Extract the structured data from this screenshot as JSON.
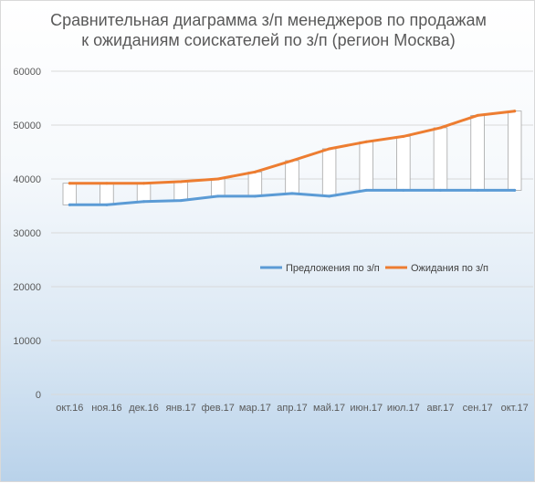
{
  "chart_data": {
    "type": "line",
    "title_lines": [
      "Сравнительная диаграмма з/п менеджеров по продажам",
      "к ожиданиям соискателей по з/п (регион Москва)"
    ],
    "categories": [
      "окт.16",
      "ноя.16",
      "дек.16",
      "янв.17",
      "фев.17",
      "мар.17",
      "апр.17",
      "май.17",
      "июн.17",
      "июл.17",
      "авг.17",
      "сен.17",
      "окт.17"
    ],
    "series": [
      {
        "name": "Предложения по з/п",
        "color": "#5b9bd5",
        "values": [
          35200,
          35200,
          35800,
          36000,
          36800,
          36800,
          37300,
          36800,
          37900,
          37900,
          37900,
          37900,
          37900
        ]
      },
      {
        "name": "Ожидания по з/п",
        "color": "#ed7d31",
        "values": [
          39200,
          39200,
          39200,
          39500,
          40000,
          41300,
          43400,
          45600,
          46900,
          47900,
          49500,
          51800,
          52600
        ]
      }
    ],
    "up_down_bars": true,
    "yticks": [
      "0",
      "10000",
      "20000",
      "30000",
      "40000",
      "50000",
      "60000"
    ],
    "ylim": [
      0,
      60000
    ],
    "grid": true,
    "legend_position": "center-right"
  }
}
